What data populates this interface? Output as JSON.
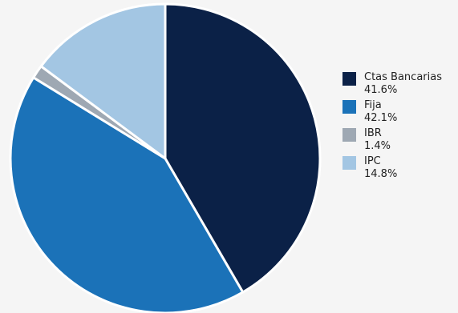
{
  "chart_data": {
    "type": "pie",
    "title": "",
    "legend_position": "right",
    "slices": [
      {
        "label": "Ctas Bancarias",
        "value": 41.6,
        "value_label": "41.6%",
        "color": "#0b2147"
      },
      {
        "label": "Fija",
        "value": 42.1,
        "value_label": "42.1%",
        "color": "#1b72b8"
      },
      {
        "label": "IBR",
        "value": 1.4,
        "value_label": "1.4%",
        "color": "#9ea8b3"
      },
      {
        "label": "IPC",
        "value": 14.8,
        "value_label": "14.8%",
        "color": "#a3c6e3"
      }
    ]
  }
}
